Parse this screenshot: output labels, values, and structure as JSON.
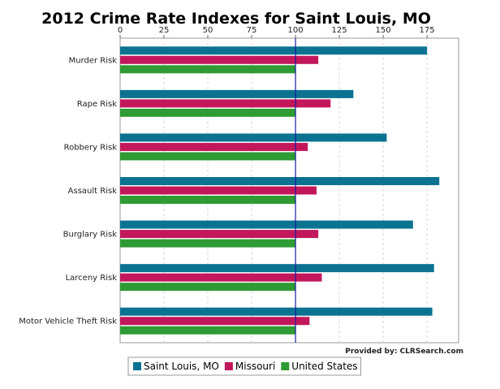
{
  "chart_data": {
    "type": "bar",
    "orientation": "horizontal",
    "title": "2012 Crime Rate Indexes for Saint Louis, MO",
    "credit": "Provided by: CLRSearch.com",
    "categories": [
      "Murder Risk",
      "Rape Risk",
      "Robbery Risk",
      "Assault Risk",
      "Burglary Risk",
      "Larceny Risk",
      "Motor Vehicle Theft Risk"
    ],
    "series": [
      {
        "name": "Saint Louis, MO",
        "color": "#0b7391",
        "values": [
          175,
          133,
          152,
          182,
          167,
          179,
          178
        ]
      },
      {
        "name": "Missouri",
        "color": "#c2185b",
        "values": [
          113,
          120,
          107,
          112,
          113,
          115,
          108
        ]
      },
      {
        "name": "United States",
        "color": "#2e9b34",
        "values": [
          100,
          100,
          100,
          100,
          100,
          100,
          100
        ]
      }
    ],
    "xlim": [
      0,
      193
    ],
    "xticks": [
      0,
      25,
      50,
      75,
      100,
      125,
      150,
      175
    ],
    "reference_value": 100,
    "grid": true,
    "axis_position": "top",
    "legend_position": "bottom-left"
  }
}
